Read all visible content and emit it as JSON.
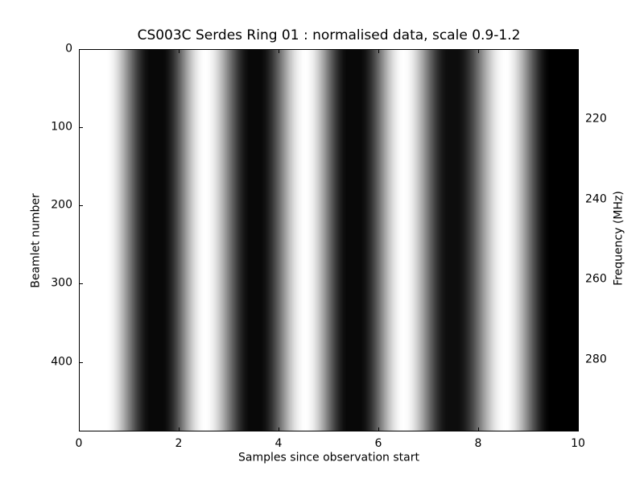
{
  "figure": {
    "background_color": "#ffffff",
    "text_color": "#000000"
  },
  "chart_data": {
    "type": "heatmap",
    "title": "CS003C Serdes Ring 01 : normalised data, scale 0.9-1.2",
    "xlabel": "Samples since observation start",
    "ylabel_left": "Beamlet number",
    "ylabel_right": "Frequency (MHz)",
    "x_range": [
      0,
      10
    ],
    "x_ticks": [
      0,
      2,
      4,
      6,
      8,
      10
    ],
    "y_left_range": [
      0,
      488
    ],
    "y_left_ticks": [
      0,
      100,
      200,
      300,
      400
    ],
    "y_right_range": [
      202.6,
      297.6
    ],
    "y_right_ticks": [
      220,
      240,
      260,
      280
    ],
    "colormap": "gray",
    "color_scale": [
      0.9,
      1.2
    ],
    "grid": false,
    "legend": null,
    "pattern_description": "Vertical grayscale stripes, uniform across all beamlets (constant in y). Intensity oscillates along x with ~2-sample period: saturated flat white from sample 0 to ~0.55, bright narrow peaks near samples 2.5, 4.5, 6.5 and 8.5, dark troughs near samples 1.55, 3.5, 5.5 and 7.5, saturating to solid black from ~9.45 to 10.",
    "stripe_profile": [
      [
        0.0,
        1.0
      ],
      [
        0.55,
        1.0
      ],
      [
        1.45,
        0.03
      ],
      [
        1.65,
        0.03
      ],
      [
        2.53,
        1.0
      ],
      [
        3.45,
        0.03
      ],
      [
        3.6,
        0.03
      ],
      [
        4.53,
        1.0
      ],
      [
        5.4,
        0.03
      ],
      [
        5.6,
        0.03
      ],
      [
        6.5,
        1.0
      ],
      [
        7.4,
        0.05
      ],
      [
        7.55,
        0.05
      ],
      [
        8.53,
        1.0
      ],
      [
        9.45,
        0.0
      ],
      [
        10.0,
        0.0
      ]
    ]
  }
}
